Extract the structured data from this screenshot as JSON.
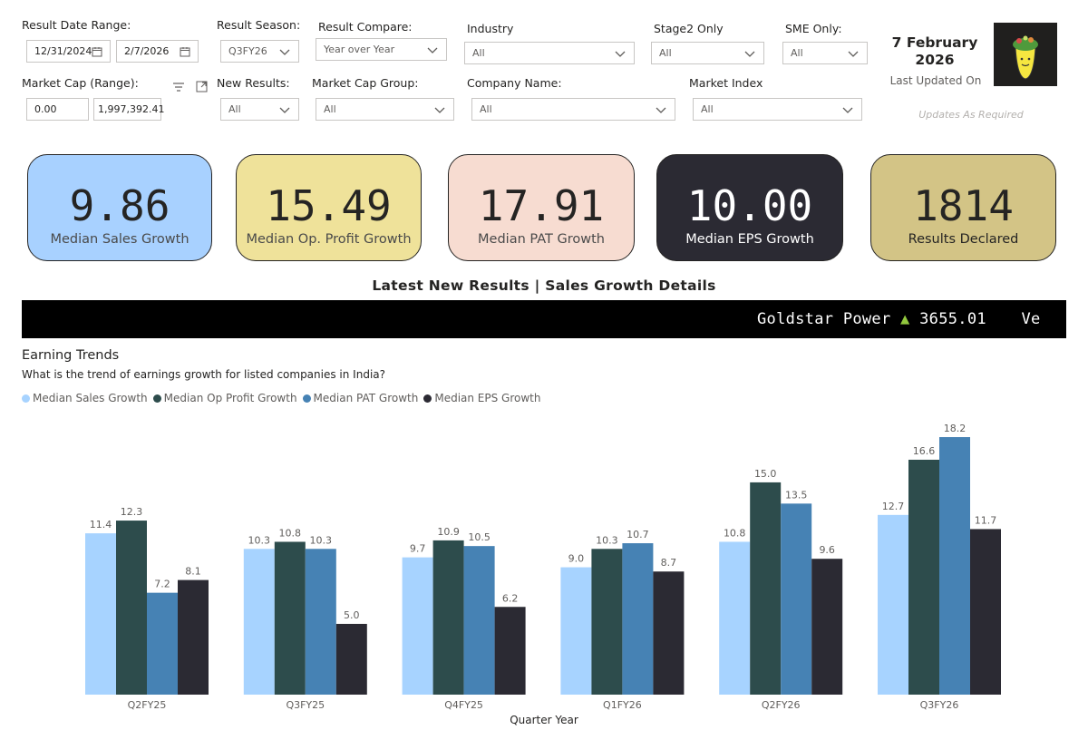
{
  "filters": {
    "result_date_range": {
      "label": "Result Date Range:",
      "from": "12/31/2024",
      "to": "2/7/2026"
    },
    "result_season": {
      "label": "Result Season:",
      "value": "Q3FY26"
    },
    "result_compare": {
      "label": "Result Compare:",
      "value": "Year over Year"
    },
    "industry": {
      "label": "Industry",
      "value": "All"
    },
    "stage2_only": {
      "label": "Stage2 Only",
      "value": "All"
    },
    "sme_only": {
      "label": "SME Only:",
      "value": "All"
    },
    "market_cap_range": {
      "label": "Market Cap (Range):",
      "min": "0.00",
      "max": "1,997,392.41"
    },
    "new_results": {
      "label": "New Results:",
      "value": "All"
    },
    "market_cap_group": {
      "label": "Market Cap Group:",
      "value": "All"
    },
    "company_name": {
      "label": "Company Name:",
      "value": "All"
    },
    "market_index": {
      "label": "Market Index",
      "value": "All"
    }
  },
  "last_updated": {
    "date_line1": "7 February",
    "date_line2": "2026",
    "label": "Last Updated On",
    "note": "Updates As Required"
  },
  "cards": [
    {
      "value": "9.86",
      "caption": "Median Sales Growth",
      "bg": "#a8d1ff",
      "fg": "#252423",
      "cap_color": "#4a4a4a"
    },
    {
      "value": "15.49",
      "caption": "Median Op. Profit Growth",
      "bg": "#efe29a",
      "fg": "#252423",
      "cap_color": "#4a4a4a"
    },
    {
      "value": "17.91",
      "caption": "Median PAT Growth",
      "bg": "#f7dcd1",
      "fg": "#252423",
      "cap_color": "#4a4a4a"
    },
    {
      "value": "10.00",
      "caption": "Median EPS Growth",
      "bg": "#2b2a33",
      "fg": "#ffffff",
      "cap_color": "#ffffff"
    },
    {
      "value": "1814",
      "caption": "Results Declared",
      "bg": "#d3c486",
      "fg": "#252423",
      "cap_color": "#252423"
    }
  ],
  "section_title": "Latest New Results | Sales Growth Details",
  "ticker": {
    "company": "Goldstar Power",
    "arrow": "▲",
    "value": "3655.01",
    "next": "Ve"
  },
  "chart_section": {
    "title": "Earning Trends",
    "subtitle": "What is the trend of earnings growth for listed companies in India?"
  },
  "chart_data": {
    "type": "bar",
    "xlabel": "Quarter Year",
    "ylabel": "",
    "ylim": [
      0,
      18.2
    ],
    "grid": false,
    "legend_position": "top-left",
    "categories": [
      "Q2FY25",
      "Q3FY25",
      "Q4FY25",
      "Q1FY26",
      "Q2FY26",
      "Q3FY26"
    ],
    "series": [
      {
        "name": "Median Sales Growth",
        "color": "#a7d3ff",
        "values": [
          11.4,
          10.3,
          9.7,
          9.0,
          10.8,
          12.7
        ]
      },
      {
        "name": "Median Op Profit Growth",
        "color": "#2d4c4c",
        "values": [
          12.3,
          10.8,
          10.9,
          10.3,
          15.0,
          16.6
        ]
      },
      {
        "name": "Median PAT Growth",
        "color": "#4682b4",
        "values": [
          7.2,
          10.3,
          10.5,
          10.7,
          13.5,
          18.2
        ]
      },
      {
        "name": "Median EPS Growth",
        "color": "#2b2a33",
        "values": [
          8.1,
          5.0,
          6.2,
          8.7,
          9.6,
          11.7
        ]
      }
    ]
  },
  "icons": [
    "calendar-icon",
    "chevron-down-icon",
    "filter-icon",
    "expand-icon",
    "logo-icon"
  ]
}
